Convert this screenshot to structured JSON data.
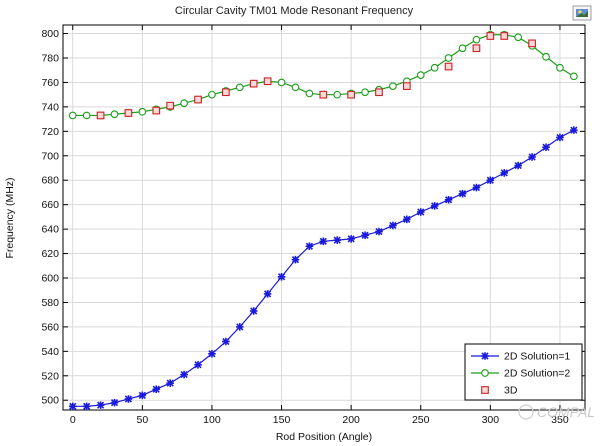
{
  "chart_data": {
    "type": "line",
    "title": "Circular Cavity TM01 Mode Resonant Frequency",
    "xlabel": "Rod Position (Angle)",
    "ylabel": "Frequency (MHz)",
    "xlim": [
      -7,
      368
    ],
    "ylim": [
      492,
      807
    ],
    "xticks": [
      0,
      50,
      100,
      150,
      200,
      250,
      300,
      350
    ],
    "yticks": [
      500,
      520,
      540,
      560,
      580,
      600,
      620,
      640,
      660,
      680,
      700,
      720,
      740,
      760,
      780,
      800
    ],
    "grid": true,
    "legend_position": "bottom-right",
    "series": [
      {
        "name": "2D Solution=1",
        "color": "#1a1adc",
        "marker": "star",
        "x": [
          0,
          10,
          20,
          30,
          40,
          50,
          60,
          70,
          80,
          90,
          100,
          110,
          120,
          130,
          140,
          150,
          160,
          170,
          180,
          190,
          200,
          210,
          220,
          230,
          240,
          250,
          260,
          270,
          280,
          290,
          300,
          310,
          320,
          330,
          340,
          350,
          360
        ],
        "values": [
          495,
          495,
          496,
          498,
          501,
          504,
          509,
          514,
          521,
          529,
          538,
          548,
          560,
          573,
          587,
          601,
          615,
          626,
          630,
          631,
          632,
          635,
          638,
          643,
          648,
          654,
          659,
          664,
          669,
          674,
          680,
          686,
          692,
          699,
          707,
          715,
          721
        ]
      },
      {
        "name": "2D Solution=2",
        "color": "#1a9e1a",
        "marker": "circle",
        "x": [
          0,
          10,
          20,
          30,
          40,
          50,
          60,
          70,
          80,
          90,
          100,
          110,
          120,
          130,
          140,
          150,
          160,
          170,
          180,
          190,
          200,
          210,
          220,
          230,
          240,
          250,
          260,
          270,
          280,
          290,
          300,
          310,
          320,
          330,
          340,
          350,
          360
        ],
        "values": [
          733,
          733,
          733,
          734,
          735,
          736,
          738,
          740,
          743,
          746,
          750,
          753,
          756,
          759,
          761,
          760,
          756,
          751,
          750,
          750,
          751,
          752,
          754,
          757,
          761,
          766,
          772,
          780,
          788,
          795,
          799,
          799,
          797,
          790,
          781,
          772,
          765
        ]
      },
      {
        "name": "3D",
        "color": "#cc2222",
        "marker": "square",
        "x": [
          20,
          40,
          60,
          70,
          90,
          110,
          130,
          140,
          180,
          200,
          220,
          240,
          270,
          290,
          300,
          310,
          330
        ],
        "values": [
          733,
          735,
          737,
          741,
          746,
          752,
          759,
          761,
          750,
          750,
          752,
          757,
          773,
          788,
          798,
          798,
          792
        ]
      }
    ]
  },
  "watermark": "COMPAL",
  "toolbar_icon": "image-export-icon"
}
